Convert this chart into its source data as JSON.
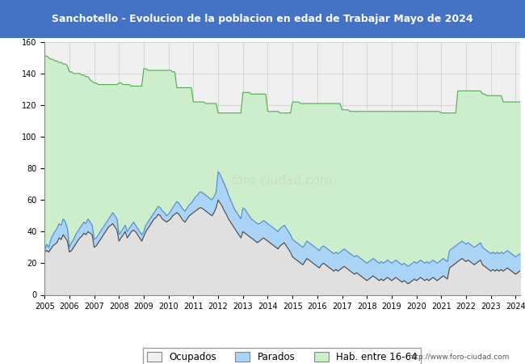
{
  "title": "Sanchotello - Evolucion de la poblacion en edad de Trabajar Mayo de 2024",
  "title_bg_color": "#4472c4",
  "title_text_color": "#ffffff",
  "ylim": [
    0,
    160
  ],
  "yticks": [
    0,
    20,
    40,
    60,
    80,
    100,
    120,
    140,
    160
  ],
  "watermark": "http://www.foro-ciudad.com",
  "legend_labels": [
    "Ocupados",
    "Parados",
    "Hab. entre 16-64"
  ],
  "legend_colors": [
    "#f0f0f0",
    "#aad4f5",
    "#cceecc"
  ],
  "bg_color": "#f0f0f0",
  "grid_color": "#cccccc",
  "hab_color": "#cceecc",
  "hab_line_color": "#55aa55",
  "parados_color": "#aad4f5",
  "parados_line_color": "#5588cc",
  "ocupados_color": "#e0e0e0",
  "ocupados_line_color": "#444444",
  "hab_16_64": [
    151,
    151,
    150,
    149,
    149,
    148,
    148,
    147,
    147,
    146,
    146,
    145,
    141,
    141,
    140,
    140,
    140,
    140,
    139,
    139,
    138,
    138,
    136,
    135,
    134,
    134,
    133,
    133,
    133,
    133,
    133,
    133,
    133,
    133,
    133,
    133,
    134,
    134,
    133,
    133,
    133,
    133,
    132,
    132,
    132,
    132,
    132,
    132,
    143,
    143,
    142,
    142,
    142,
    142,
    142,
    142,
    142,
    142,
    142,
    142,
    142,
    142,
    141,
    141,
    131,
    131,
    131,
    131,
    131,
    131,
    131,
    131,
    122,
    122,
    122,
    122,
    122,
    122,
    121,
    121,
    121,
    121,
    121,
    121,
    115,
    115,
    115,
    115,
    115,
    115,
    115,
    115,
    115,
    115,
    115,
    115,
    128,
    128,
    128,
    128,
    127,
    127,
    127,
    127,
    127,
    127,
    127,
    127,
    116,
    116,
    116,
    116,
    116,
    116,
    115,
    115,
    115,
    115,
    115,
    115,
    122,
    122,
    122,
    122,
    121,
    121,
    121,
    121,
    121,
    121,
    121,
    121,
    121,
    121,
    121,
    121,
    121,
    121,
    121,
    121,
    121,
    121,
    121,
    121,
    117,
    117,
    117,
    117,
    116,
    116,
    116,
    116,
    116,
    116,
    116,
    116,
    116,
    116,
    116,
    116,
    116,
    116,
    116,
    116,
    116,
    116,
    116,
    116,
    116,
    116,
    116,
    116,
    116,
    116,
    116,
    116,
    116,
    116,
    116,
    116,
    116,
    116,
    116,
    116,
    116,
    116,
    116,
    116,
    116,
    116,
    116,
    116,
    115,
    115,
    115,
    115,
    115,
    115,
    115,
    115,
    129,
    129,
    129,
    129,
    129,
    129,
    129,
    129,
    129,
    129,
    129,
    129,
    127,
    127,
    126,
    126,
    126,
    126,
    126,
    126,
    126,
    126,
    122,
    122,
    122,
    122,
    122,
    122,
    122,
    122,
    122
  ],
  "parados": [
    28,
    32,
    30,
    35,
    38,
    40,
    42,
    45,
    44,
    48,
    46,
    42,
    30,
    33,
    35,
    38,
    40,
    42,
    44,
    46,
    45,
    48,
    46,
    44,
    35,
    36,
    38,
    40,
    42,
    44,
    46,
    48,
    50,
    52,
    50,
    48,
    38,
    40,
    42,
    44,
    40,
    42,
    44,
    46,
    44,
    42,
    40,
    38,
    40,
    44,
    46,
    48,
    50,
    52,
    54,
    56,
    55,
    53,
    52,
    50,
    51,
    53,
    55,
    57,
    59,
    58,
    56,
    54,
    53,
    55,
    57,
    58,
    60,
    62,
    63,
    65,
    65,
    64,
    63,
    62,
    61,
    60,
    62,
    65,
    78,
    76,
    73,
    70,
    67,
    63,
    60,
    57,
    54,
    52,
    50,
    48,
    55,
    54,
    52,
    50,
    48,
    47,
    46,
    45,
    45,
    46,
    47,
    46,
    45,
    44,
    43,
    42,
    41,
    40,
    42,
    43,
    44,
    42,
    40,
    38,
    35,
    34,
    33,
    32,
    31,
    30,
    32,
    34,
    33,
    32,
    31,
    30,
    29,
    28,
    30,
    31,
    30,
    29,
    28,
    27,
    26,
    27,
    26,
    27,
    28,
    29,
    28,
    27,
    26,
    25,
    24,
    25,
    24,
    23,
    22,
    21,
    20,
    21,
    22,
    23,
    22,
    21,
    20,
    21,
    20,
    21,
    22,
    21,
    20,
    21,
    22,
    21,
    20,
    19,
    20,
    19,
    18,
    19,
    20,
    21,
    20,
    21,
    22,
    21,
    20,
    21,
    20,
    21,
    22,
    21,
    20,
    21,
    22,
    23,
    22,
    21,
    28,
    29,
    30,
    31,
    32,
    33,
    34,
    33,
    32,
    33,
    32,
    31,
    30,
    31,
    32,
    33,
    30,
    29,
    28,
    27,
    26,
    27,
    26,
    27,
    26,
    27,
    26,
    27,
    28,
    27,
    26,
    25,
    24,
    25,
    26,
    27
  ],
  "ocupados": [
    27,
    28,
    27,
    29,
    31,
    32,
    33,
    36,
    35,
    38,
    36,
    34,
    27,
    28,
    30,
    32,
    34,
    36,
    37,
    39,
    38,
    40,
    39,
    38,
    30,
    31,
    33,
    35,
    37,
    39,
    41,
    43,
    44,
    45,
    43,
    41,
    34,
    36,
    38,
    40,
    36,
    38,
    40,
    41,
    40,
    38,
    36,
    34,
    37,
    40,
    42,
    44,
    46,
    48,
    49,
    51,
    50,
    48,
    47,
    46,
    47,
    48,
    50,
    51,
    52,
    51,
    49,
    47,
    46,
    48,
    50,
    51,
    52,
    53,
    54,
    55,
    55,
    54,
    53,
    52,
    51,
    50,
    52,
    55,
    60,
    58,
    56,
    53,
    51,
    48,
    46,
    44,
    42,
    40,
    38,
    36,
    40,
    39,
    38,
    37,
    36,
    35,
    34,
    33,
    34,
    35,
    36,
    35,
    34,
    33,
    32,
    31,
    30,
    29,
    31,
    32,
    33,
    31,
    29,
    27,
    24,
    23,
    22,
    21,
    20,
    19,
    21,
    23,
    22,
    21,
    20,
    19,
    18,
    17,
    19,
    20,
    19,
    18,
    17,
    16,
    15,
    16,
    15,
    16,
    17,
    18,
    17,
    16,
    15,
    14,
    13,
    14,
    13,
    12,
    11,
    10,
    9,
    10,
    11,
    12,
    11,
    10,
    9,
    10,
    9,
    10,
    11,
    10,
    9,
    10,
    11,
    10,
    9,
    8,
    9,
    8,
    7,
    8,
    9,
    10,
    9,
    10,
    11,
    10,
    9,
    10,
    9,
    10,
    11,
    10,
    9,
    10,
    11,
    12,
    11,
    10,
    17,
    18,
    19,
    20,
    21,
    22,
    23,
    22,
    21,
    22,
    21,
    20,
    19,
    20,
    21,
    22,
    19,
    18,
    17,
    16,
    15,
    16,
    15,
    16,
    15,
    16,
    15,
    16,
    17,
    16,
    15,
    14,
    13,
    14,
    15,
    16
  ]
}
